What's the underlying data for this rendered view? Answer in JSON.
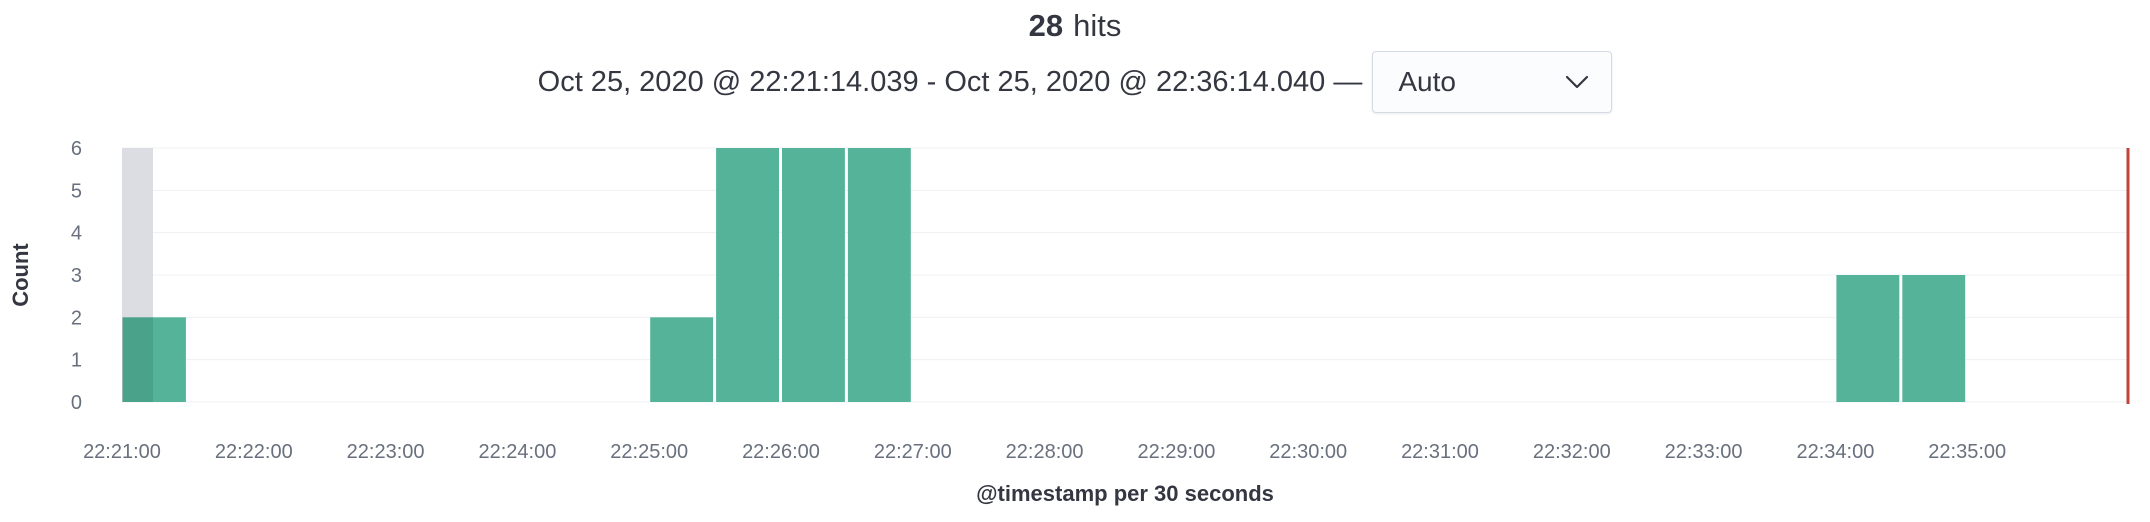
{
  "header": {
    "hits_count": "28",
    "hits_label": "hits",
    "time_range": "Oct 25, 2020 @ 22:21:14.039 - Oct 25, 2020 @ 22:36:14.040 —",
    "interval": {
      "selected": "Auto"
    }
  },
  "colors": {
    "bar": "#54b399",
    "selection": "#dcdde2",
    "now_line": "#c1433b",
    "grid": "#eef0f3"
  },
  "chart_data": {
    "type": "bar",
    "xlabel": "@timestamp per 30 seconds",
    "ylabel": "Count",
    "ylim": [
      0,
      6
    ],
    "y_ticks": [
      "0",
      "1",
      "2",
      "3",
      "4",
      "5",
      "6"
    ],
    "x_tick_labels": [
      "22:21:00",
      "22:22:00",
      "22:23:00",
      "22:24:00",
      "22:25:00",
      "22:26:00",
      "22:27:00",
      "22:28:00",
      "22:29:00",
      "22:30:00",
      "22:31:00",
      "22:32:00",
      "22:33:00",
      "22:34:00",
      "22:35:00"
    ],
    "bars": [
      {
        "start": "22:21:00",
        "value": 2
      },
      {
        "start": "22:25:00",
        "value": 2
      },
      {
        "start": "22:25:30",
        "value": 6
      },
      {
        "start": "22:26:00",
        "value": 6
      },
      {
        "start": "22:26:30",
        "value": 6
      },
      {
        "start": "22:34:00",
        "value": 3
      },
      {
        "start": "22:34:30",
        "value": 3
      }
    ]
  }
}
